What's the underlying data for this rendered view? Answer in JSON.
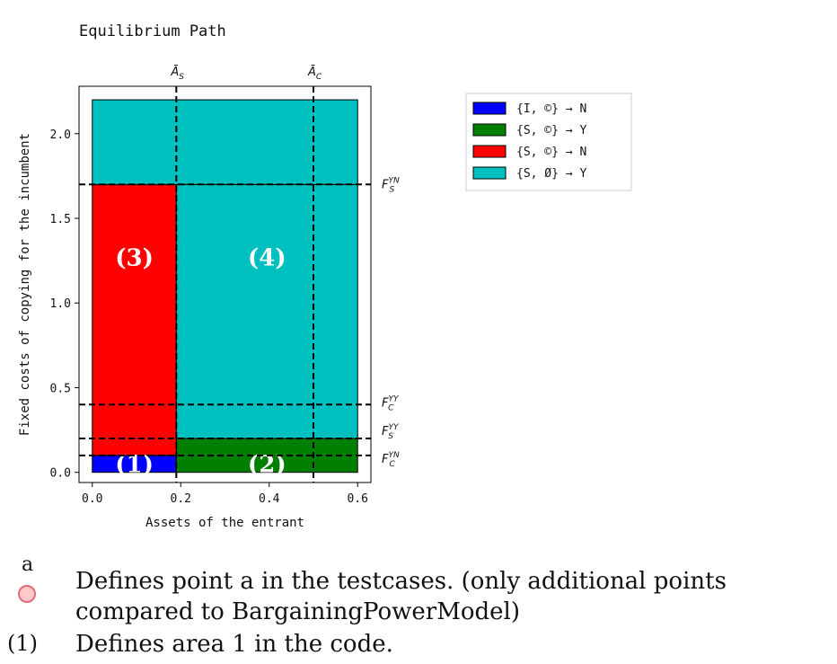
{
  "chart_data": {
    "type": "area",
    "title": "Equilibrium Path",
    "xlabel": "Assets of the entrant",
    "ylabel": "Fixed costs of copying for the incumbent",
    "xlim": [
      -0.03,
      0.63
    ],
    "ylim": [
      -0.06,
      2.28
    ],
    "xticks": [
      0.0,
      0.2,
      0.4,
      0.6
    ],
    "xtick_labels": [
      "0.0",
      "0.2",
      "0.4",
      "0.6"
    ],
    "yticks": [
      0.0,
      0.5,
      1.0,
      1.5,
      2.0
    ],
    "ytick_labels": [
      "0.0",
      "0.5",
      "1.0",
      "1.5",
      "2.0"
    ],
    "grid": false,
    "legend_placement": "outside-right-top",
    "legend": [
      {
        "label": "{I, ©} → N",
        "color": "#0000ff"
      },
      {
        "label": "{S, ©} → Y",
        "color": "#007f00"
      },
      {
        "label": "{S, ©} → N",
        "color": "#ff0000"
      },
      {
        "label": "{S, Ø} → Y",
        "color": "#00bfbf"
      }
    ],
    "regions": [
      {
        "x0": 0.0,
        "x1": 0.19,
        "y0": 0.0,
        "y1": 0.1,
        "color": "#0000ff",
        "label": "(1)"
      },
      {
        "x0": 0.19,
        "x1": 0.6,
        "y0": 0.0,
        "y1": 0.2,
        "color": "#007f00",
        "label": "(2)"
      },
      {
        "x0": 0.0,
        "x1": 0.19,
        "y0": 0.1,
        "y1": 1.7,
        "color": "#ff0000",
        "label": "(3)"
      },
      {
        "x0": 0.19,
        "x1": 0.6,
        "y0": 0.2,
        "y1": 1.7,
        "color": "#00bfbf",
        "label": "(4)"
      },
      {
        "x0": 0.0,
        "x1": 0.6,
        "y0": 1.7,
        "y1": 2.2,
        "color": "#00bfbf",
        "label": ""
      }
    ],
    "region_labels": [
      {
        "text": "(1)",
        "x": 0.095,
        "y": 0.05
      },
      {
        "text": "(2)",
        "x": 0.395,
        "y": 0.05
      },
      {
        "text": "(3)",
        "x": 0.095,
        "y": 1.27
      },
      {
        "text": "(4)",
        "x": 0.395,
        "y": 1.27
      }
    ],
    "vlines": [
      {
        "x": 0.19,
        "label": "Ā_S"
      },
      {
        "x": 0.5,
        "label": "Ā_C"
      }
    ],
    "hlines": [
      {
        "y": 1.7,
        "label": "F_S^YN"
      },
      {
        "y": 0.4,
        "label": "F_C^YY"
      },
      {
        "y": 0.2,
        "label": "F_S^YY"
      },
      {
        "y": 0.1,
        "label": "F_C^YN"
      }
    ]
  },
  "annotations": {
    "marker_a_label": "a",
    "marker_a_text": "Defines point a in the testcases. (only additional points compared to BargainingPowerModel)",
    "area_marker": "(1)",
    "area_text": "Defines area 1 in the code."
  }
}
